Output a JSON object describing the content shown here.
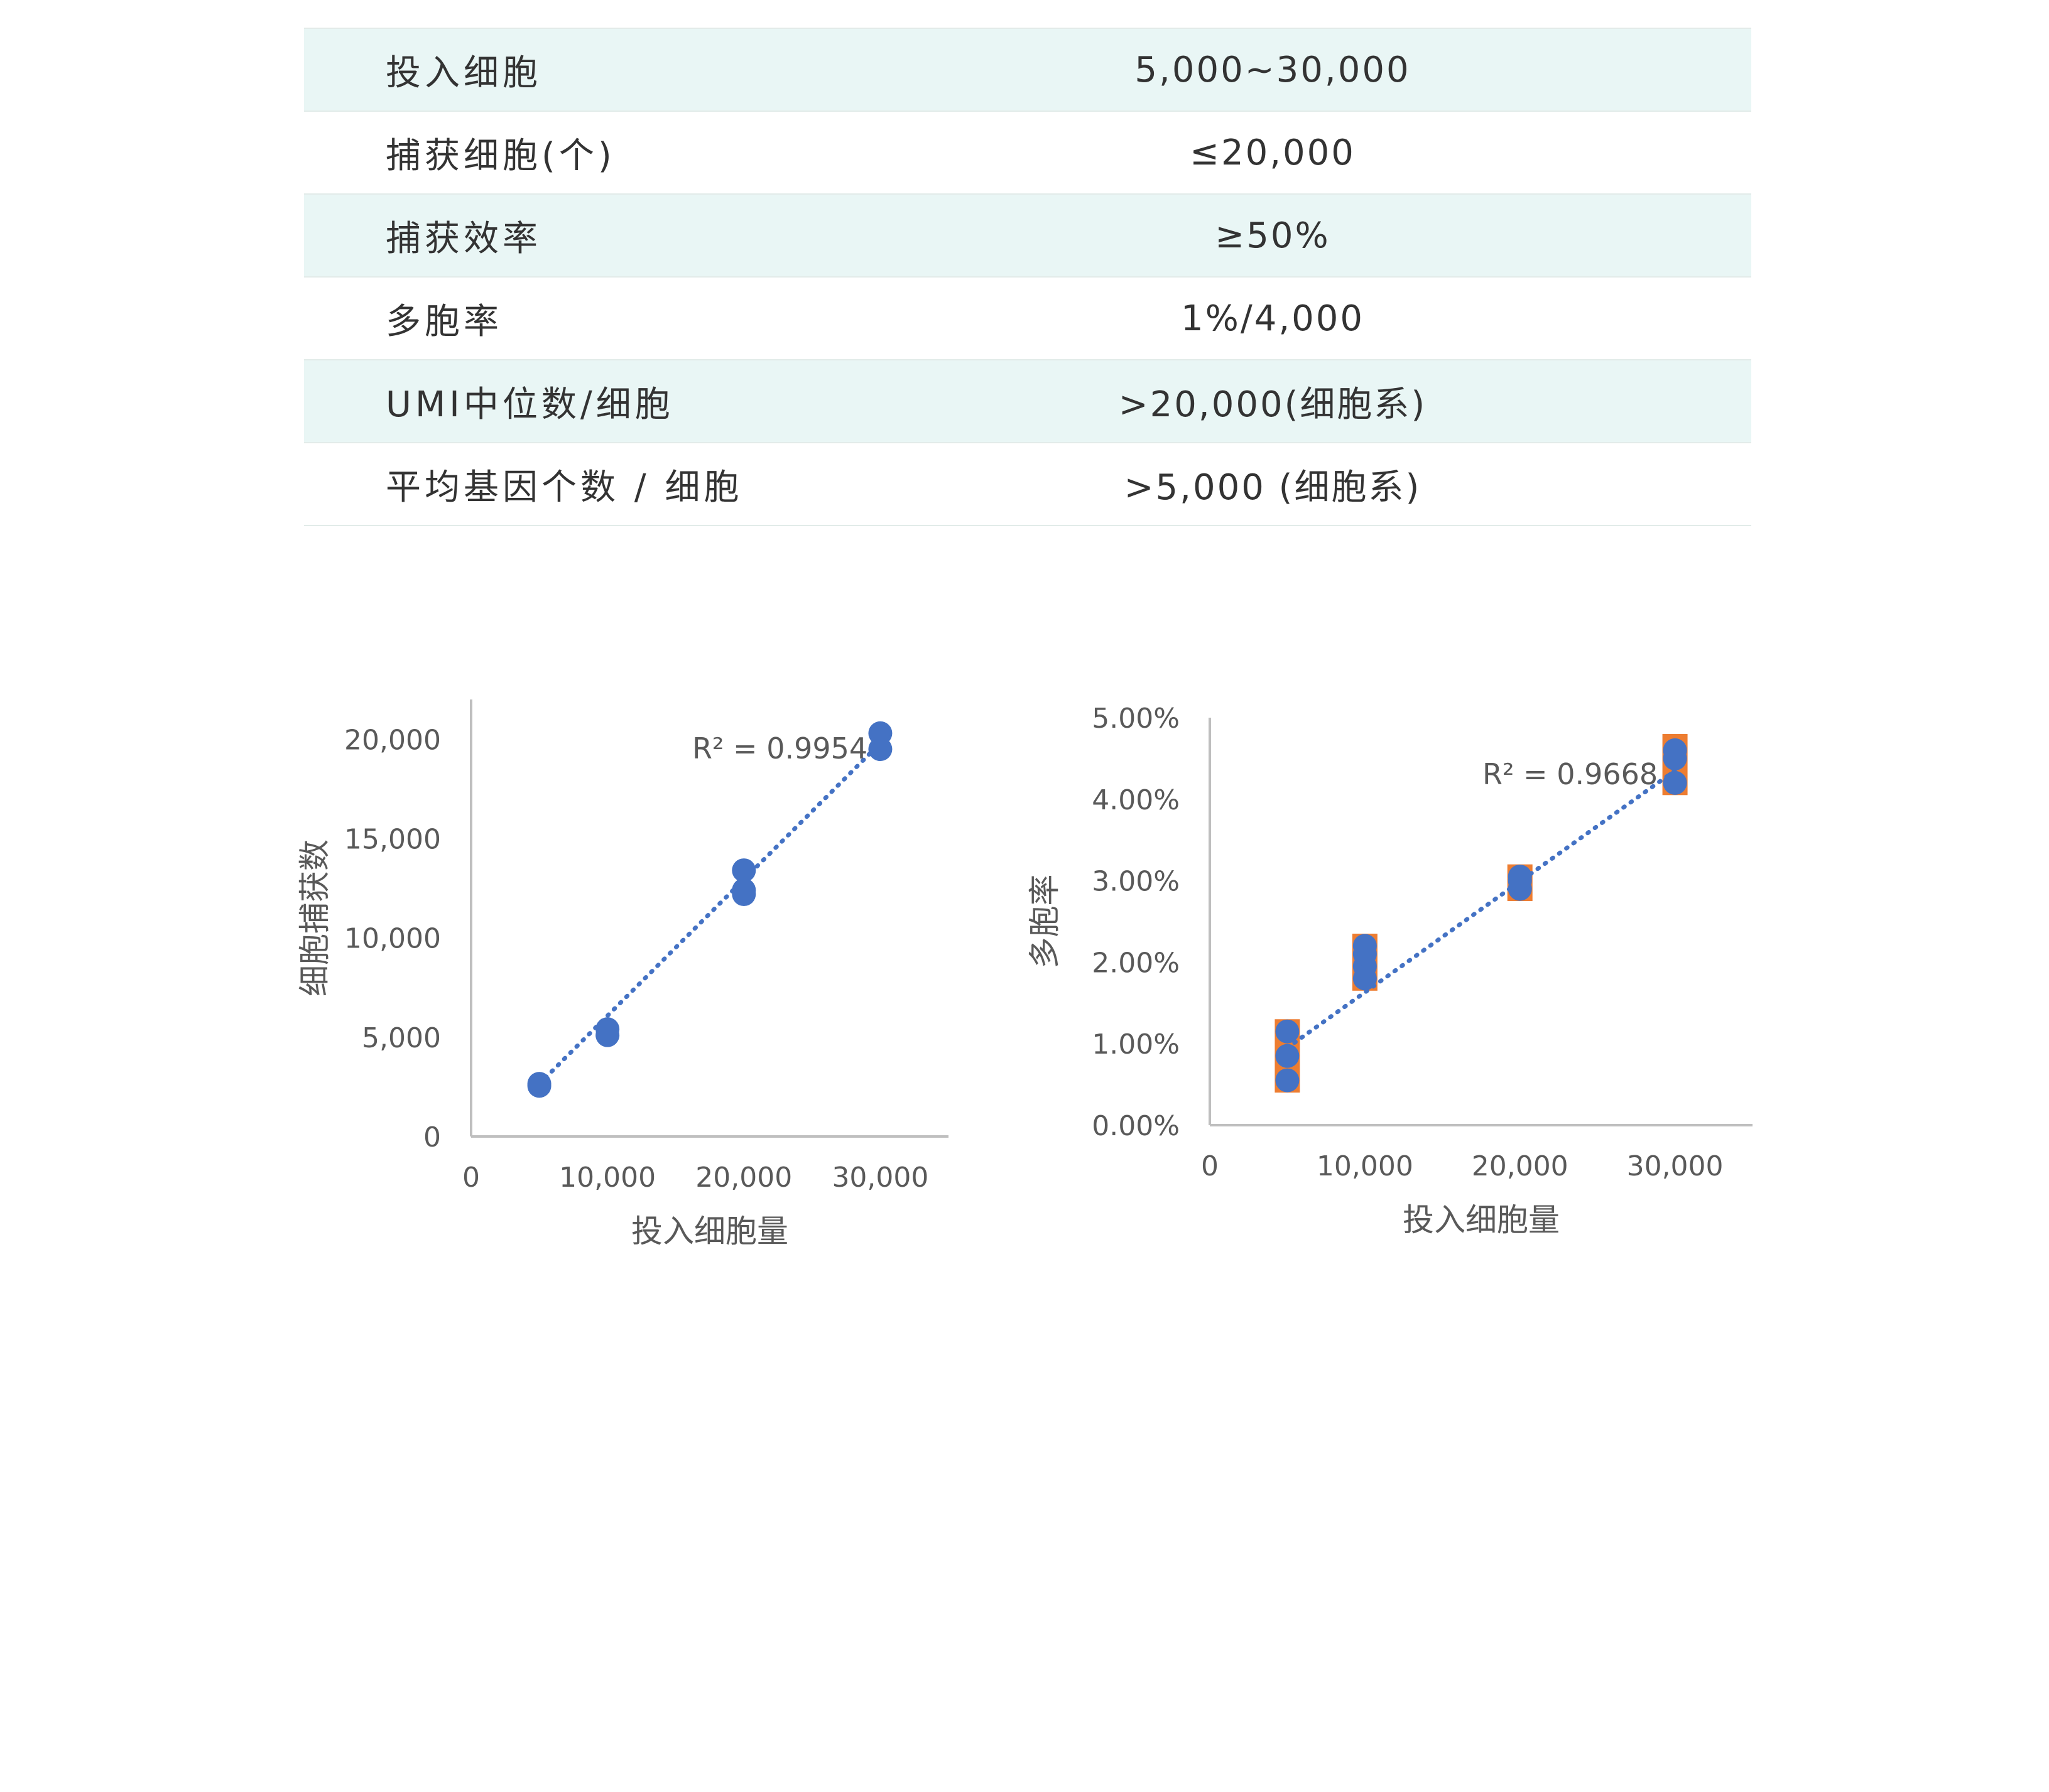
{
  "colors": {
    "row_shade": "#e9f6f5",
    "point": "#4472c4",
    "trendline": "#4472c4",
    "error_bar": "#ed7d31",
    "axis": "#bfbfbf",
    "text": "#595959"
  },
  "spec_table": {
    "rows": [
      {
        "label": "投入细胞",
        "value": "5,000~30,000",
        "shaded": true
      },
      {
        "label": "捕获细胞(个)",
        "value": "≤20,000",
        "shaded": false
      },
      {
        "label": "捕获效率",
        "value": "≥50%",
        "shaded": true
      },
      {
        "label": "多胞率",
        "value": "1%/4,000",
        "shaded": false
      },
      {
        "label": "UMI中位数/细胞",
        "value": ">20,000(细胞系)",
        "shaded": true
      },
      {
        "label": "平均基因个数 / 细胞",
        "value": ">5,000 (细胞系)",
        "shaded": false
      }
    ]
  },
  "chart_data": [
    {
      "type": "scatter",
      "xlabel": "投入细胞量",
      "ylabel": "细胞捕获数",
      "xlim": [
        0,
        35000
      ],
      "ylim": [
        0,
        22000
      ],
      "x_ticks": [
        0,
        10000,
        20000,
        30000
      ],
      "x_tick_labels": [
        "0",
        "10,000",
        "20,000",
        "30,000"
      ],
      "y_ticks": [
        0,
        5000,
        10000,
        15000,
        20000
      ],
      "y_tick_labels": [
        "0",
        "5,000",
        "10,000",
        "15,000",
        "20,000"
      ],
      "points": [
        {
          "x": 5000,
          "y": 2550
        },
        {
          "x": 5000,
          "y": 2650
        },
        {
          "x": 10000,
          "y": 5100
        },
        {
          "x": 10000,
          "y": 5400
        },
        {
          "x": 20000,
          "y": 12200
        },
        {
          "x": 20000,
          "y": 12400
        },
        {
          "x": 20000,
          "y": 13400
        },
        {
          "x": 30000,
          "y": 19500
        },
        {
          "x": 30000,
          "y": 20300
        }
      ],
      "trendline": {
        "x": [
          5000,
          30000
        ],
        "y": [
          2650,
          19800
        ],
        "style": "dotted"
      },
      "annotation": "R² = 0.9954",
      "grid": false
    },
    {
      "type": "scatter",
      "xlabel": "投入细胞量",
      "ylabel": "多胞率",
      "xlim": [
        0,
        35000
      ],
      "ylim": [
        0,
        0.05
      ],
      "x_ticks": [
        0,
        10000,
        20000,
        30000
      ],
      "x_tick_labels": [
        "0",
        "10,000",
        "20,000",
        "30,000"
      ],
      "y_ticks": [
        0,
        0.01,
        0.02,
        0.03,
        0.04,
        0.05
      ],
      "y_tick_labels": [
        "0.00%",
        "1.00%",
        "2.00%",
        "3.00%",
        "4.00%",
        "5.00%"
      ],
      "points": [
        {
          "x": 5000,
          "y": 0.0055
        },
        {
          "x": 5000,
          "y": 0.0085
        },
        {
          "x": 5000,
          "y": 0.0115
        },
        {
          "x": 10000,
          "y": 0.018
        },
        {
          "x": 10000,
          "y": 0.0195
        },
        {
          "x": 10000,
          "y": 0.021
        },
        {
          "x": 10000,
          "y": 0.022
        },
        {
          "x": 20000,
          "y": 0.029
        },
        {
          "x": 20000,
          "y": 0.03
        },
        {
          "x": 20000,
          "y": 0.0305
        },
        {
          "x": 30000,
          "y": 0.042
        },
        {
          "x": 30000,
          "y": 0.045
        },
        {
          "x": 30000,
          "y": 0.046
        }
      ],
      "error_ranges": [
        {
          "x": 5000,
          "low": 0.004,
          "high": 0.013
        },
        {
          "x": 10000,
          "low": 0.0165,
          "high": 0.0235
        },
        {
          "x": 20000,
          "low": 0.0275,
          "high": 0.032
        },
        {
          "x": 30000,
          "low": 0.0405,
          "high": 0.048
        }
      ],
      "trendline": {
        "x": [
          5000,
          30000
        ],
        "y": [
          0.0095,
          0.0435
        ],
        "style": "dotted"
      },
      "annotation": "R² = 0.9668",
      "grid": false
    }
  ]
}
